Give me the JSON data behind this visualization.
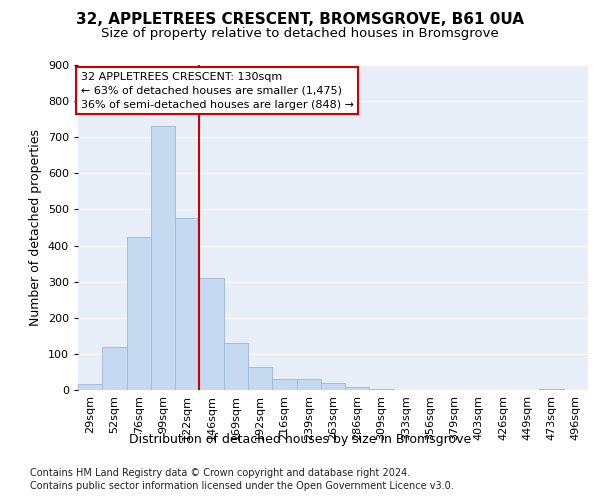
{
  "title1": "32, APPLETREES CRESCENT, BROMSGROVE, B61 0UA",
  "title2": "Size of property relative to detached houses in Bromsgrove",
  "xlabel": "Distribution of detached houses by size in Bromsgrove",
  "ylabel": "Number of detached properties",
  "footnote1": "Contains HM Land Registry data © Crown copyright and database right 2024.",
  "footnote2": "Contains public sector information licensed under the Open Government Licence v3.0.",
  "bar_labels": [
    "29sqm",
    "52sqm",
    "76sqm",
    "99sqm",
    "122sqm",
    "146sqm",
    "169sqm",
    "192sqm",
    "216sqm",
    "239sqm",
    "263sqm",
    "286sqm",
    "309sqm",
    "333sqm",
    "356sqm",
    "379sqm",
    "403sqm",
    "426sqm",
    "449sqm",
    "473sqm",
    "496sqm"
  ],
  "bar_values": [
    18,
    120,
    425,
    730,
    475,
    310,
    130,
    65,
    30,
    30,
    20,
    8,
    2,
    0,
    0,
    0,
    0,
    0,
    0,
    2,
    0
  ],
  "bar_color": "#c5d9f1",
  "bar_edge_color": "#9ab8d8",
  "background_color": "#e8eef8",
  "grid_color": "#ffffff",
  "vline_position": 4.5,
  "vline_color": "#cc0000",
  "annotation_text": "32 APPLETREES CRESCENT: 130sqm\n← 63% of detached houses are smaller (1,475)\n36% of semi-detached houses are larger (848) →",
  "annotation_box_color": "#ffffff",
  "annotation_box_edge": "#cc0000",
  "ylim": [
    0,
    900
  ],
  "yticks": [
    0,
    100,
    200,
    300,
    400,
    500,
    600,
    700,
    800,
    900
  ],
  "title1_fontsize": 11,
  "title2_fontsize": 9.5,
  "xlabel_fontsize": 9,
  "ylabel_fontsize": 9,
  "tick_fontsize": 8,
  "annotation_fontsize": 8,
  "footnote_fontsize": 7
}
